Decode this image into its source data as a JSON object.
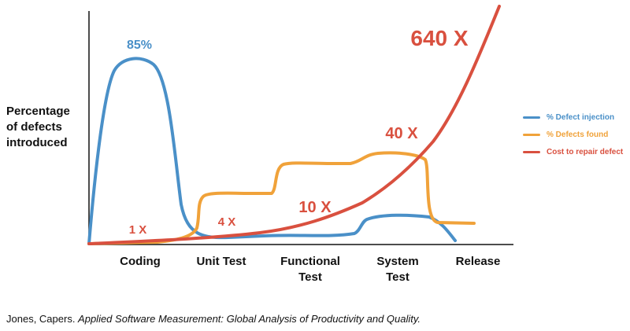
{
  "chart_data": {
    "type": "line",
    "ylabel_lines": [
      "Percentage",
      "of defects",
      "introduced"
    ],
    "categories": [
      {
        "lines": [
          "Coding"
        ]
      },
      {
        "lines": [
          "Unit Test"
        ]
      },
      {
        "lines": [
          "Functional",
          "Test"
        ]
      },
      {
        "lines": [
          "System",
          "Test"
        ]
      },
      {
        "lines": [
          "Release"
        ]
      }
    ],
    "series": [
      {
        "name": "% Defect injection",
        "color": "#4a90c8"
      },
      {
        "name": "% Defects found",
        "color": "#f0a23a"
      },
      {
        "name": "Cost to repair defect",
        "color": "#d9503f"
      }
    ],
    "annotations": [
      {
        "text": "85%",
        "color": "#4a90c8"
      },
      {
        "text": "1 X",
        "color": "#d9503f"
      },
      {
        "text": "4 X",
        "color": "#d9503f"
      },
      {
        "text": "10 X",
        "color": "#d9503f"
      },
      {
        "text": "40 X",
        "color": "#d9503f"
      },
      {
        "text": "640 X",
        "color": "#d9503f"
      }
    ]
  },
  "citation": {
    "prefix": "Jones, Capers. ",
    "title": "Applied Software Measurement: Global Analysis of Productivity and Quality."
  }
}
